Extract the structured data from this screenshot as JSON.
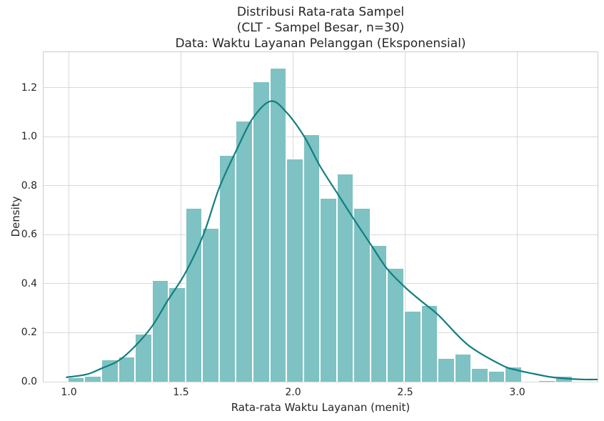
{
  "title": {
    "line1": "Distribusi Rata-rata Sampel",
    "line2": "(CLT - Sampel Besar, n=30)",
    "line3": "Data: Waktu Layanan Pelanggan (Eksponensial)"
  },
  "chart_data": {
    "type": "histogram",
    "subtype": "histogram-with-kde-overlay",
    "title_lines": [
      "Distribusi Rata-rata Sampel",
      "(CLT - Sampel Besar, n=30)",
      "Data: Waktu Layanan Pelanggan (Eksponensial)"
    ],
    "xlabel": "Rata-rata Waktu Layanan (menit)",
    "ylabel": "Density",
    "x_tick_labels": [
      "1.0",
      "1.5",
      "2.0",
      "2.5",
      "3.0"
    ],
    "y_tick_labels": [
      "0.0",
      "0.2",
      "0.4",
      "0.6",
      "0.8",
      "1.0",
      "1.2"
    ],
    "xlim": [
      0.887,
      3.358
    ],
    "ylim": [
      0,
      1.345
    ],
    "grid": "both",
    "legend": false,
    "bins": {
      "start": 0.995,
      "bin_width": 0.075,
      "count": 30
    },
    "bar_densities": [
      0.018,
      0.024,
      0.09,
      0.103,
      0.195,
      0.415,
      0.385,
      0.71,
      0.627,
      0.925,
      1.065,
      1.225,
      1.28,
      0.911,
      1.01,
      0.75,
      0.848,
      0.71,
      0.558,
      0.464,
      0.289,
      0.313,
      0.096,
      0.114,
      0.056,
      0.044,
      0.06,
      0.0,
      0.007,
      0.024
    ],
    "kde_curve": [
      [
        0.99,
        0.018
      ],
      [
        1.08,
        0.03
      ],
      [
        1.15,
        0.056
      ],
      [
        1.22,
        0.085
      ],
      [
        1.29,
        0.14
      ],
      [
        1.37,
        0.225
      ],
      [
        1.44,
        0.33
      ],
      [
        1.52,
        0.445
      ],
      [
        1.6,
        0.6
      ],
      [
        1.67,
        0.79
      ],
      [
        1.75,
        0.95
      ],
      [
        1.82,
        1.075
      ],
      [
        1.9,
        1.145
      ],
      [
        1.97,
        1.1
      ],
      [
        2.05,
        1.0
      ],
      [
        2.12,
        0.88
      ],
      [
        2.2,
        0.765
      ],
      [
        2.27,
        0.665
      ],
      [
        2.35,
        0.555
      ],
      [
        2.42,
        0.46
      ],
      [
        2.5,
        0.385
      ],
      [
        2.57,
        0.33
      ],
      [
        2.65,
        0.27
      ],
      [
        2.78,
        0.15
      ],
      [
        2.93,
        0.068
      ],
      [
        3.0,
        0.047
      ],
      [
        3.08,
        0.031
      ],
      [
        3.15,
        0.019
      ],
      [
        3.23,
        0.012
      ],
      [
        3.3,
        0.009
      ],
      [
        3.36,
        0.009
      ]
    ],
    "colors": {
      "bar_fill": "#7ec2c3",
      "bar_edge": "#ffffff",
      "kde_line": "#127e80",
      "grid": "#d9d9d9",
      "spine": "#cccccc",
      "text": "#262626"
    }
  }
}
